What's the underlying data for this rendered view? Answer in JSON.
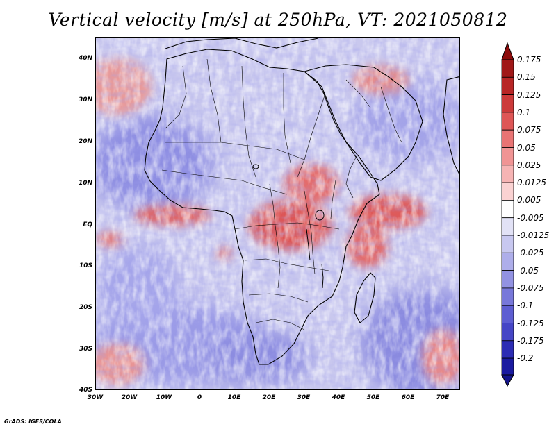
{
  "title": "Vertical velocity [m/s] at 250hPa, VT: 2021050812",
  "footer": "GrADS: IGES/COLA",
  "map": {
    "lat_labels": [
      "40N",
      "30N",
      "20N",
      "10N",
      "EQ",
      "10S",
      "20S",
      "30S",
      "40S"
    ],
    "lon_labels": [
      "30W",
      "20W",
      "10W",
      "0",
      "10E",
      "20E",
      "30E",
      "40E",
      "50E",
      "60E",
      "70E"
    ],
    "region": "Africa and surrounding oceans",
    "colors": {
      "ascent": "#d24040",
      "descent": "#5a5ad8",
      "neutral": "#f2f0fa"
    }
  },
  "colorbar": {
    "levels": [
      "0.175",
      "0.15",
      "0.125",
      "0.1",
      "0.075",
      "0.05",
      "0.025",
      "0.0125",
      "0.005",
      "-0.005",
      "-0.0125",
      "-0.025",
      "-0.05",
      "-0.075",
      "-0.1",
      "-0.125",
      "-0.175",
      "-0.2"
    ],
    "colors": [
      "#a01818",
      "#b82626",
      "#cc3a3a",
      "#de5656",
      "#e87474",
      "#f09494",
      "#f6b4b4",
      "#fad2d2",
      "#ffffff",
      "#e2e2f6",
      "#c8c8f0",
      "#aeaeea",
      "#9292e2",
      "#7878da",
      "#5e5ed2",
      "#4646c6",
      "#2c2cb4",
      "#1a1aa0"
    ],
    "top_arrow_color": "#8c0a0a",
    "bottom_arrow_color": "#14148c"
  }
}
